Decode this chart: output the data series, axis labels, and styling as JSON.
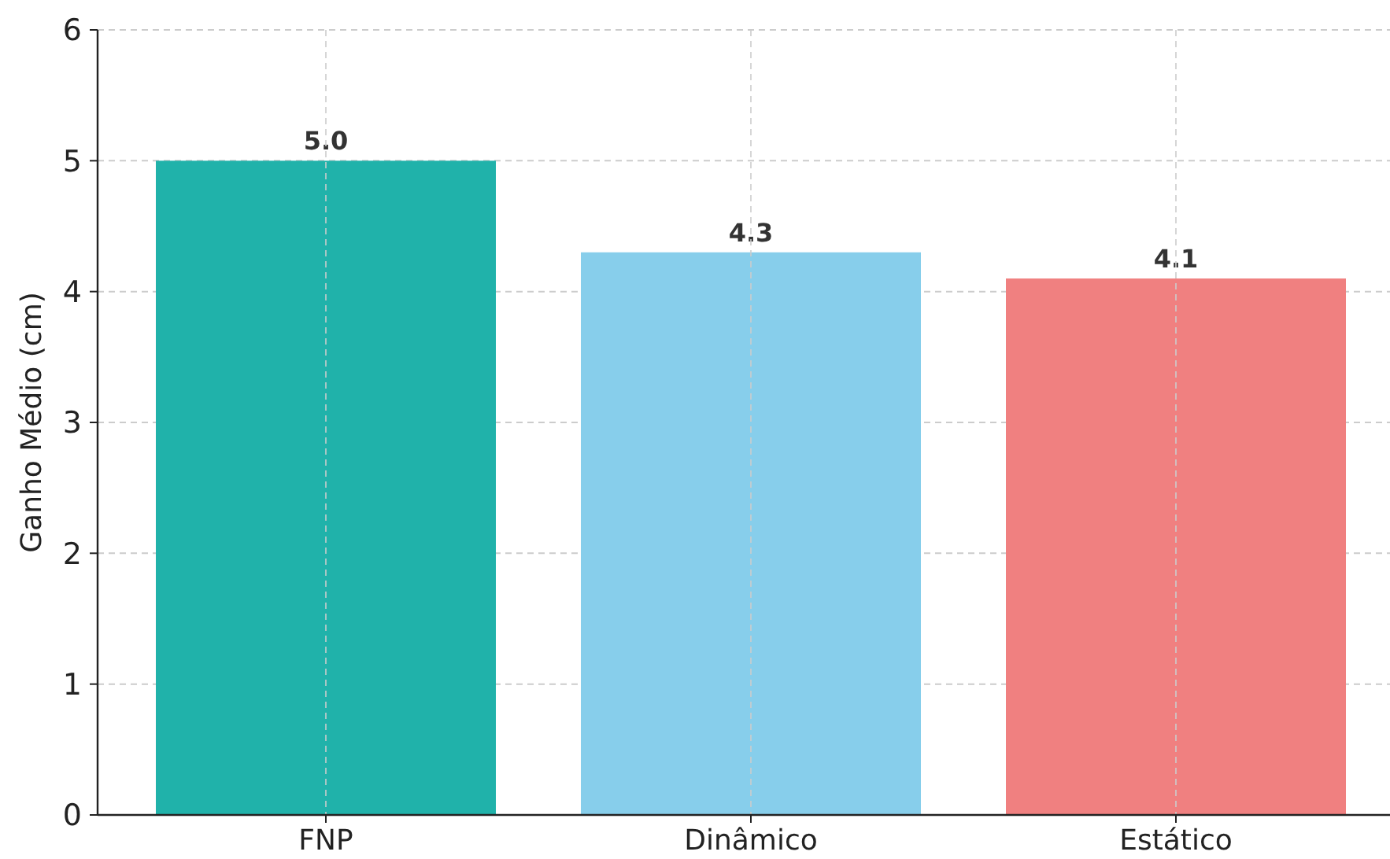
{
  "chart_data": {
    "type": "bar",
    "ylabel": "Ganho Médio (cm)",
    "categories": [
      "FNP",
      "Dinâmico",
      "Estático"
    ],
    "values": [
      5.0,
      4.3,
      4.1
    ],
    "colors": [
      "#20b2aa",
      "#87ceeb",
      "#f08080"
    ],
    "ylim": [
      0,
      6
    ],
    "yticks": [
      0,
      1,
      2,
      3,
      4,
      5,
      6
    ],
    "grid": true,
    "value_labels": [
      "5.0",
      "4.3",
      "4.1"
    ]
  }
}
